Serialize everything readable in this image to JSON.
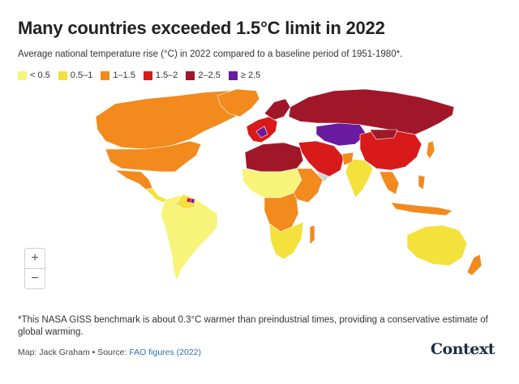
{
  "title": "Many countries exceeded 1.5°C limit in 2022",
  "subtitle": "Average national temperature rise (°C) in 2022 compared to a baseline period of 1951-1980*.",
  "legend": [
    {
      "label": "< 0.5",
      "color": "#f8f47a"
    },
    {
      "label": "0.5–1",
      "color": "#f4e13c"
    },
    {
      "label": "1–1.5",
      "color": "#f28a1d"
    },
    {
      "label": "1.5–2",
      "color": "#d91a1a"
    },
    {
      "label": "2–2.5",
      "color": "#a0172a"
    },
    {
      "label": "≥ 2.5",
      "color": "#6a1aa0"
    }
  ],
  "zoom": {
    "in_label": "+",
    "out_label": "−"
  },
  "footnote": "*This NASA GISS benchmark is about 0.3°C warmer than preindustrial times, providing a conservative estimate of global warming.",
  "credit": {
    "prefix": "Map: Jack Graham • Source: ",
    "link_text": "FAO figures (2022)"
  },
  "logo": "Context"
}
